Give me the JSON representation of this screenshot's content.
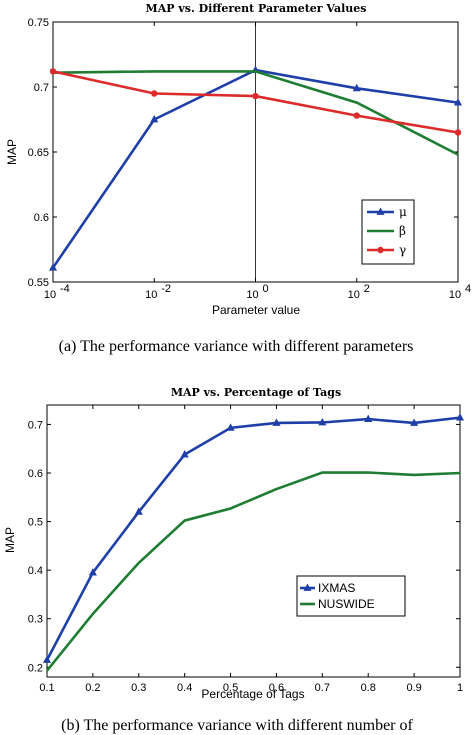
{
  "chart_data": [
    {
      "type": "line",
      "title": "MAP vs. Different Parameter Values",
      "xlabel": "Parameter value",
      "ylabel": "MAP",
      "xscale": "log",
      "x": [
        0.0001,
        0.01,
        1,
        100,
        10000
      ],
      "x_tick_labels": [
        {
          "base": "10",
          "exp": "-4"
        },
        {
          "base": "10",
          "exp": "-2"
        },
        {
          "base": "10",
          "exp": "0"
        },
        {
          "base": "10",
          "exp": "2"
        },
        {
          "base": "10",
          "exp": "4"
        }
      ],
      "ylim": [
        0.55,
        0.75
      ],
      "y_ticks": [
        "0.55",
        "0.6",
        "0.65",
        "0.7",
        "0.75"
      ],
      "legend_position": "bottom-right",
      "series": [
        {
          "name": "μ",
          "color": "#1f3fa8",
          "marker": "triangle",
          "values": [
            0.561,
            0.675,
            0.713,
            0.699,
            0.688
          ]
        },
        {
          "name": "β",
          "color": "#1e7d32",
          "marker": "none",
          "values": [
            0.711,
            0.712,
            0.712,
            0.688,
            0.648
          ]
        },
        {
          "name": "γ",
          "color": "#dd2b2b",
          "marker": "circle",
          "values": [
            0.712,
            0.695,
            0.693,
            0.678,
            0.665
          ]
        }
      ],
      "caption": "(a)  The performance variance with different parameters"
    },
    {
      "type": "line",
      "title": "MAP vs. Percentage of Tags",
      "xlabel": "Percentage of Tags",
      "ylabel": "MAP",
      "x": [
        0.1,
        0.2,
        0.3,
        0.4,
        0.5,
        0.6,
        0.7,
        0.8,
        0.9,
        1.0
      ],
      "x_ticks": [
        "0.1",
        "0.2",
        "0.3",
        "0.4",
        "0.5",
        "0.6",
        "0.7",
        "0.8",
        "0.9",
        "1"
      ],
      "ylim": [
        0.18,
        0.74
      ],
      "y_ticks": [
        "0.2",
        "0.3",
        "0.4",
        "0.5",
        "0.6",
        "0.7"
      ],
      "legend_position": "bottom-right",
      "series": [
        {
          "name": "IXMAS",
          "color": "#1f3fa8",
          "marker": "triangle",
          "values": [
            0.215,
            0.395,
            0.52,
            0.638,
            0.693,
            0.703,
            0.704,
            0.711,
            0.703,
            0.714
          ]
        },
        {
          "name": "NUSWIDE",
          "color": "#1e7d32",
          "marker": "none",
          "values": [
            0.193,
            0.31,
            0.415,
            0.502,
            0.527,
            0.567,
            0.601,
            0.601,
            0.596,
            0.6
          ]
        }
      ],
      "caption": "(b)  The performance variance with different number of"
    }
  ]
}
